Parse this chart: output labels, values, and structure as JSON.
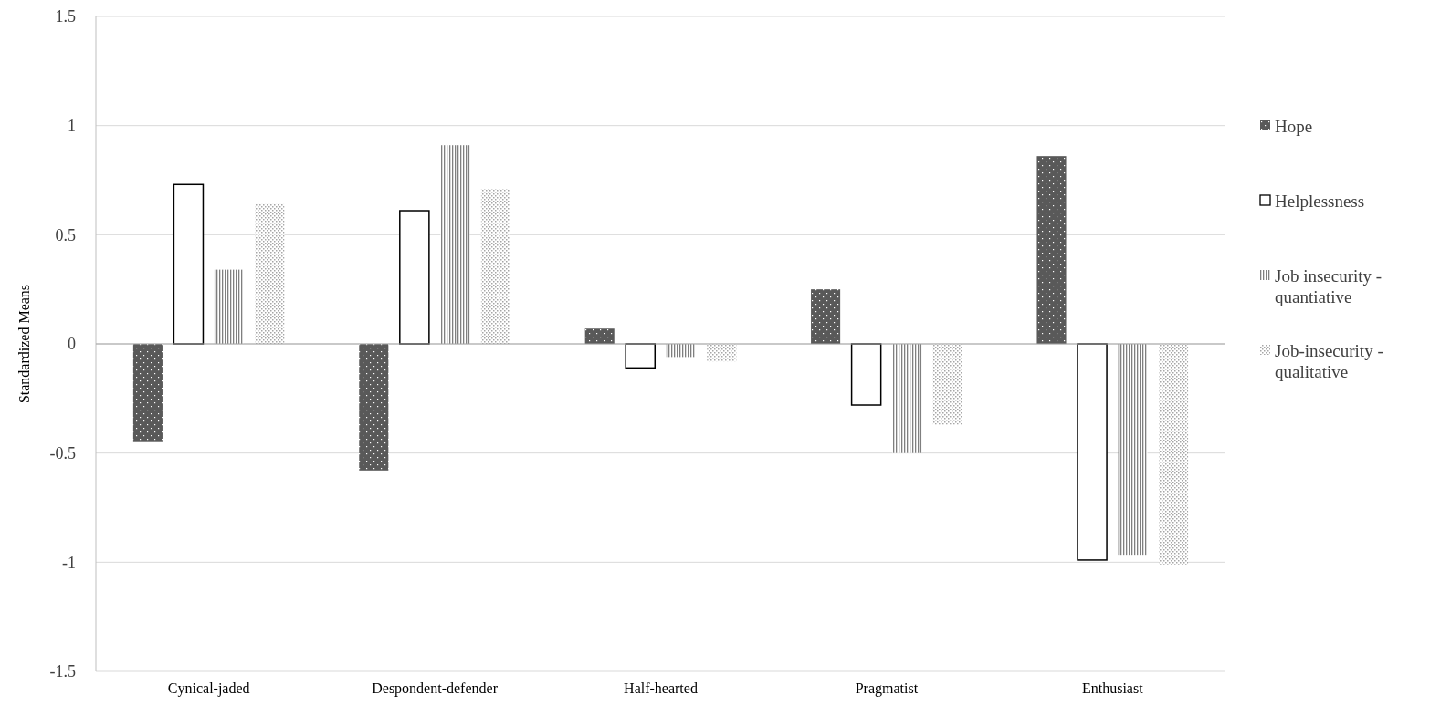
{
  "chart_data": {
    "type": "bar",
    "ylabel": "Standardized Means",
    "categories": [
      "Cynical-jaded",
      "Despondent-defender",
      "Half-hearted",
      "Pragmatist",
      "Enthusiast"
    ],
    "series": [
      {
        "name": "Hope",
        "color": "#595959",
        "values": [
          -0.45,
          -0.58,
          0.07,
          0.25,
          0.86
        ]
      },
      {
        "name": "Helplessness",
        "color": "#ffffff",
        "values": [
          0.73,
          0.61,
          -0.11,
          -0.28,
          -0.99
        ]
      },
      {
        "name": "Job insecurity - quantiative",
        "color": "#7f7f7f",
        "values": [
          0.34,
          0.91,
          -0.06,
          -0.5,
          -0.97
        ]
      },
      {
        "name": "Job-insecurity - qualitative",
        "color": "#a6a6a6",
        "values": [
          0.64,
          0.71,
          -0.08,
          -0.37,
          -1.01
        ]
      }
    ],
    "ylim": [
      -1.5,
      1.5
    ],
    "yticks": [
      -1.5,
      -1,
      -0.5,
      0,
      0.5,
      1,
      1.5
    ],
    "grid": "y",
    "legend": "right"
  }
}
